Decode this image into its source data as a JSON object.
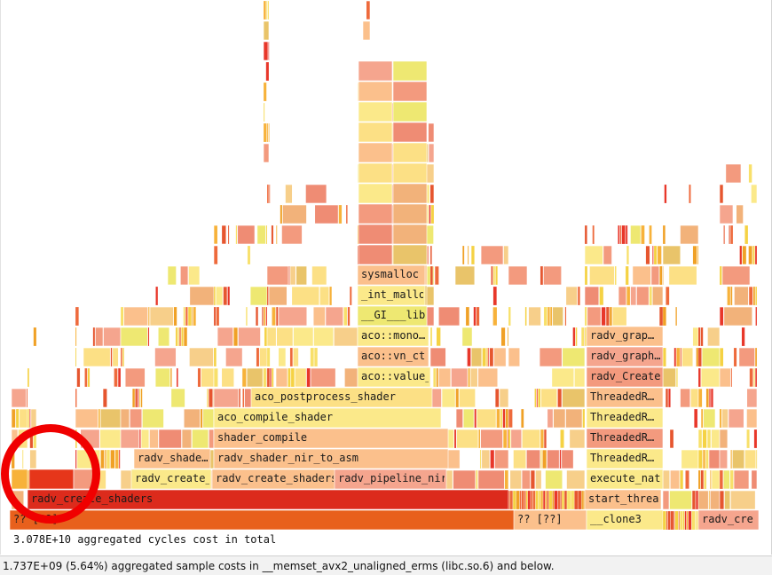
{
  "flamegraph": {
    "frames": [
      {
        "label": "?? [??]"
      },
      {
        "label": "radv_create_shaders"
      },
      {
        "label": "radv_create_"
      },
      {
        "label": "radv_shade…"
      },
      {
        "label": "radv_create_shaders"
      },
      {
        "label": "radv_pipeline_nir"
      },
      {
        "label": "radv_shader_nir_to_asm"
      },
      {
        "label": "shader_compile"
      },
      {
        "label": "aco_compile_shader"
      },
      {
        "label": "aco_postprocess_shader"
      },
      {
        "label": "aco::value_"
      },
      {
        "label": "aco::vn_ct"
      },
      {
        "label": "aco::mono…"
      },
      {
        "label": "__GI___lib"
      },
      {
        "label": "_int_mallo"
      },
      {
        "label": "sysmalloc"
      },
      {
        "label": "?? [??]"
      },
      {
        "label": "__clone3"
      },
      {
        "label": "start_threa"
      },
      {
        "label": "execute_nat"
      },
      {
        "label": "ThreadedR…"
      },
      {
        "label": "ThreadedR…"
      },
      {
        "label": "ThreadedR…"
      },
      {
        "label": "ThreadedR…"
      },
      {
        "label": "radv_Create"
      },
      {
        "label": "radv_graph…"
      },
      {
        "label": "radv_grap…"
      },
      {
        "label": "radv_cre"
      }
    ]
  },
  "total_cost": "3.078E+10 aggregated cycles cost in total",
  "status_text": "1.737E+09 (5.64%) aggregated sample costs in __memset_avx2_unaligned_erms (libc.so.6) and below.",
  "colors": {
    "root": "#e8601c",
    "hot": "#dc2b1c",
    "selected": "#e6361a",
    "palette": [
      "#fbe98a",
      "#fbc08c",
      "#f5a58e",
      "#f39a7e",
      "#ef8c74",
      "#f7cf8a",
      "#eee872",
      "#fce085",
      "#e9c46a",
      "#f2b27a"
    ],
    "sliver": [
      "#e8372a",
      "#f0a126",
      "#f5d244",
      "#ee6a3c",
      "#f7b23a",
      "#f8e06a",
      "#e6562f"
    ],
    "marker": "#f00000"
  }
}
